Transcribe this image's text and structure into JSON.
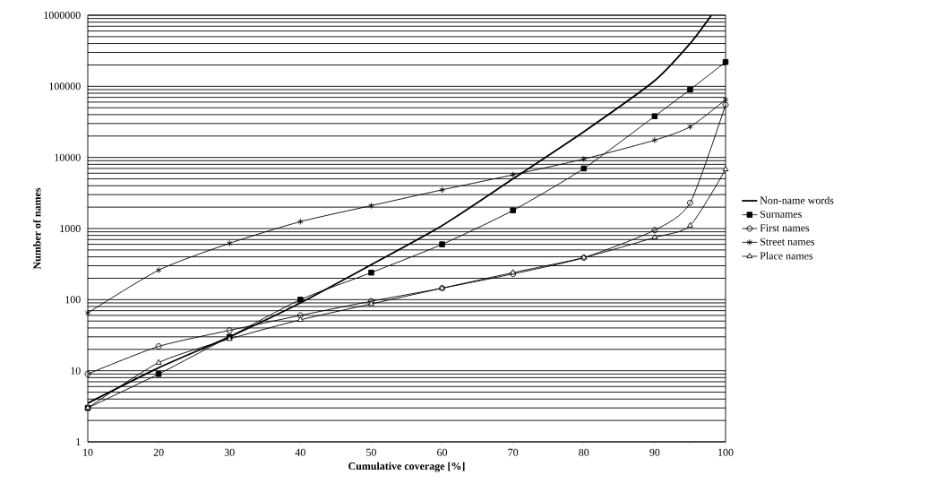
{
  "chart_data": {
    "type": "line",
    "xlabel": "Cumulative coverage [%]",
    "ylabel": "Number of names",
    "x": [
      10,
      20,
      30,
      40,
      50,
      60,
      70,
      80,
      90,
      95,
      100
    ],
    "series": [
      {
        "name": "Non-name words",
        "color": "#000000",
        "marker": "none",
        "x": [
          10,
          20,
          30,
          40,
          50,
          60,
          70,
          80,
          90,
          95,
          98
        ],
        "values": [
          3.5,
          11,
          30,
          90,
          310,
          1100,
          5000,
          23000,
          120000,
          400000,
          1000000
        ]
      },
      {
        "name": "Surnames",
        "color": "#000000",
        "marker": "square",
        "values": [
          3,
          9,
          30,
          100,
          240,
          600,
          1800,
          7000,
          38000,
          90000,
          220000
        ]
      },
      {
        "name": "First names",
        "color": "#000000",
        "marker": "circle",
        "values": [
          9,
          22,
          37,
          60,
          95,
          145,
          230,
          390,
          950,
          2300,
          55000
        ]
      },
      {
        "name": "Street names",
        "color": "#000000",
        "marker": "cross",
        "values": [
          65,
          260,
          620,
          1250,
          2100,
          3500,
          5700,
          9500,
          17500,
          27000,
          65000
        ]
      },
      {
        "name": "Place names",
        "color": "#000000",
        "marker": "triangle",
        "values": [
          3,
          13,
          28,
          52,
          87,
          145,
          240,
          390,
          750,
          1100,
          6800
        ]
      }
    ],
    "log": "y",
    "grid": "y",
    "legend": "right",
    "xlim": [
      10,
      100
    ],
    "xticks": [
      10,
      20,
      30,
      40,
      50,
      60,
      70,
      80,
      90,
      {
        "value": 95,
        "label": null
      },
      100
    ],
    "ylim": [
      1,
      1000000
    ],
    "yticks": [
      1,
      10,
      100,
      1000,
      10000,
      100000,
      1000000
    ]
  }
}
